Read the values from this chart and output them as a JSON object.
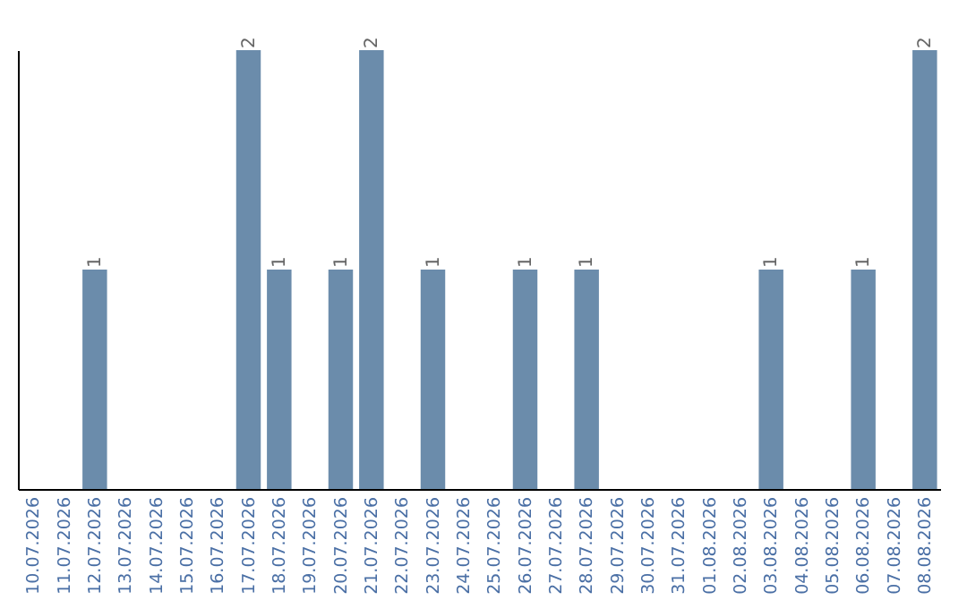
{
  "chart_data": {
    "type": "bar",
    "categories": [
      "10.07.2026",
      "11.07.2026",
      "12.07.2026",
      "13.07.2026",
      "14.07.2026",
      "15.07.2026",
      "16.07.2026",
      "17.07.2026",
      "18.07.2026",
      "19.07.2026",
      "20.07.2026",
      "21.07.2026",
      "22.07.2026",
      "23.07.2026",
      "24.07.2026",
      "25.07.2026",
      "26.07.2026",
      "27.07.2026",
      "28.07.2026",
      "29.07.2026",
      "30.07.2026",
      "31.07.2026",
      "01.08.2026",
      "02.08.2026",
      "03.08.2026",
      "04.08.2026",
      "05.08.2026",
      "06.08.2026",
      "07.08.2026",
      "08.08.2026"
    ],
    "values": [
      0,
      0,
      1,
      0,
      0,
      0,
      0,
      2,
      1,
      0,
      1,
      2,
      0,
      1,
      0,
      0,
      1,
      0,
      1,
      0,
      0,
      0,
      0,
      0,
      1,
      0,
      0,
      1,
      0,
      2
    ],
    "value_labels": [
      null,
      null,
      "1",
      null,
      null,
      null,
      null,
      "2",
      "1",
      null,
      "1",
      "2",
      null,
      "1",
      null,
      null,
      "1",
      null,
      "1",
      null,
      null,
      null,
      null,
      null,
      "1",
      null,
      null,
      "1",
      null,
      "2"
    ],
    "color": "#6b8cab",
    "ylim": [
      0,
      2
    ],
    "tick_labels": "x",
    "grid": false
  }
}
